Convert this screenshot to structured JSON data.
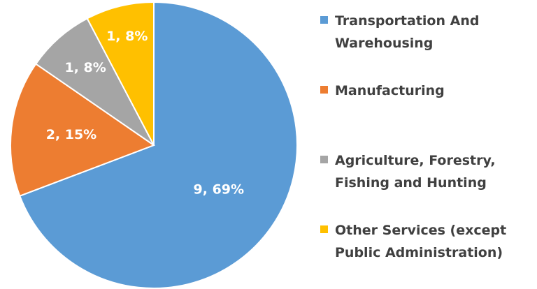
{
  "chart_data": {
    "type": "pie",
    "categories": [
      "Transportation And Warehousing",
      "Manufacturing",
      "Agriculture, Forestry, Fishing and Hunting",
      "Other Services (except Public Administration)"
    ],
    "values": [
      9,
      2,
      1,
      1
    ],
    "value_labels": [
      "9, 69%",
      "2, 15%",
      "1, 8%",
      "1, 8%"
    ],
    "colors": [
      "#5b9bd5",
      "#ed7d31",
      "#a5a5a5",
      "#ffc000"
    ],
    "legend": "right"
  }
}
